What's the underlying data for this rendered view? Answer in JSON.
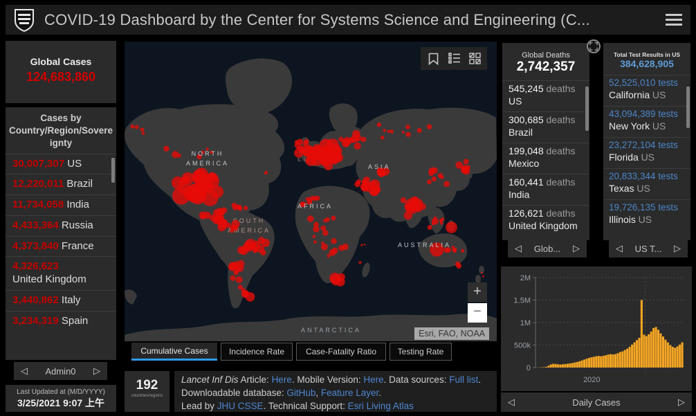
{
  "header": {
    "title": "COVID-19 Dashboard by the Center for Systems Science and Engineering (C..."
  },
  "left": {
    "global_cases": {
      "label": "Global Cases",
      "value": "124,683,860"
    },
    "cases_by_country": {
      "title": "Cases by Country/Region/Sovereignty",
      "rows": [
        {
          "value": "30,007,307",
          "name": "US"
        },
        {
          "value": "12,220,011",
          "name": "Brazil"
        },
        {
          "value": "11,734,058",
          "name": "India"
        },
        {
          "value": "4,433,364",
          "name": "Russia"
        },
        {
          "value": "4,373,840",
          "name": "France"
        },
        {
          "value": "4,326,623",
          "name": "United Kingdom"
        },
        {
          "value": "3,440,862",
          "name": "Italy"
        },
        {
          "value": "3,234,319",
          "name": "Spain"
        }
      ],
      "pager_label": "Admin0"
    },
    "last_updated": {
      "label": "Last Updated at (M/D/YYYY)",
      "value": "3/25/2021 9:07 上午"
    }
  },
  "map": {
    "labels": {
      "north_america": "NORTH\nAMERICA",
      "south_america": "SOUTH\nAMERICA",
      "europe": "EUROPE",
      "asia": "ASIA",
      "africa": "AFRICA",
      "australia": "AUSTRALIA",
      "antarctica": "ANTARCTICA"
    },
    "attribution": "Esri, FAO, NOAA",
    "tabs": [
      {
        "label": "Cumulative Cases",
        "active": true
      },
      {
        "label": "Incidence Rate",
        "active": false
      },
      {
        "label": "Case-Fatality Ratio",
        "active": false
      },
      {
        "label": "Testing Rate",
        "active": false
      }
    ]
  },
  "bottom": {
    "counter": {
      "value": "192",
      "label": "countries/regions"
    },
    "info": {
      "segments": [
        {
          "t": "Lancet Inf Dis",
          "i": 1
        },
        {
          "t": " Article: "
        },
        {
          "t": "Here",
          "link": 1
        },
        {
          "t": ". Mobile Version: "
        },
        {
          "t": "Here",
          "link": 1
        },
        {
          "t": ". Data sources: "
        },
        {
          "t": "Full list",
          "link": 1
        },
        {
          "t": ". Downloadable database: "
        },
        {
          "t": "GitHub",
          "link": 1
        },
        {
          "t": ", "
        },
        {
          "t": "Feature Layer",
          "link": 1
        },
        {
          "t": "."
        },
        {
          "br": 1
        },
        {
          "t": "Lead by "
        },
        {
          "t": "JHU CSSE",
          "link": 1
        },
        {
          "t": ". Technical Support: "
        },
        {
          "t": "Esri Living Atlas",
          "link": 1
        }
      ]
    }
  },
  "right": {
    "global_deaths": {
      "label": "Global Deaths",
      "value": "2,742,357",
      "rows": [
        {
          "value": "545,245",
          "suffix": "deaths",
          "name": "US"
        },
        {
          "value": "300,685",
          "suffix": "deaths",
          "name": "Brazil"
        },
        {
          "value": "199,048",
          "suffix": "deaths",
          "name": "Mexico"
        },
        {
          "value": "160,441",
          "suffix": "deaths",
          "name": "India"
        },
        {
          "value": "126,621",
          "suffix": "deaths",
          "name": "United Kingdom"
        }
      ],
      "pager_label": "Glob..."
    },
    "us_tests": {
      "label": "Total Test Results in US",
      "value": "384,628,905",
      "rows": [
        {
          "value": "52,525,010",
          "suffix": "tests",
          "name": "California",
          "name2": "US"
        },
        {
          "value": "43,094,389",
          "suffix": "tests",
          "name": "New York",
          "name2": "US"
        },
        {
          "value": "23,272,104",
          "suffix": "tests",
          "name": "Florida",
          "name2": "US"
        },
        {
          "value": "20,833,344",
          "suffix": "tests",
          "name": "Texas",
          "name2": "US"
        },
        {
          "value": "19,726,135",
          "suffix": "tests",
          "name": "Illinois",
          "name2": "US"
        }
      ],
      "pager_label": "US T..."
    }
  },
  "chart_data": {
    "type": "bar",
    "title": "Daily Cases",
    "ylabel": "",
    "xlabel": "2020",
    "y_ticks": [
      "0",
      "500k",
      "1M",
      "1.5M",
      "2M"
    ],
    "ylim_thousands": [
      0,
      2000
    ],
    "x_tick_label": "2020",
    "x_tick_fraction": 0.38,
    "year_divider_fraction": 0.74,
    "bar_color": "#F5A623",
    "values_thousands": [
      2,
      3,
      5,
      8,
      15,
      40,
      70,
      82,
      80,
      72,
      68,
      72,
      78,
      84,
      92,
      100,
      112,
      125,
      140,
      158,
      178,
      198,
      215,
      228,
      240,
      252,
      258,
      250,
      262,
      275,
      288,
      298,
      292,
      300,
      318,
      345,
      360,
      390,
      420,
      460,
      510,
      560,
      610,
      660,
      1500,
      730,
      700,
      740,
      800,
      880,
      900,
      840,
      760,
      690,
      620,
      560,
      500,
      460,
      440,
      470,
      510,
      560
    ]
  },
  "icons": {
    "prev": "◁",
    "next": "▷",
    "zoom_in": "+",
    "zoom_out": "−"
  },
  "colors": {
    "accent_red": "#D10000",
    "accent_blue_value": "#4C86C8",
    "accent_blue_link": "#4E86CF",
    "chart_orange": "#F5A623",
    "tab_underline": "#2E9BF0",
    "panel_bg": "#2B2B2B",
    "map_ocean": "#0D1520",
    "map_land": "#3A3A3A"
  }
}
